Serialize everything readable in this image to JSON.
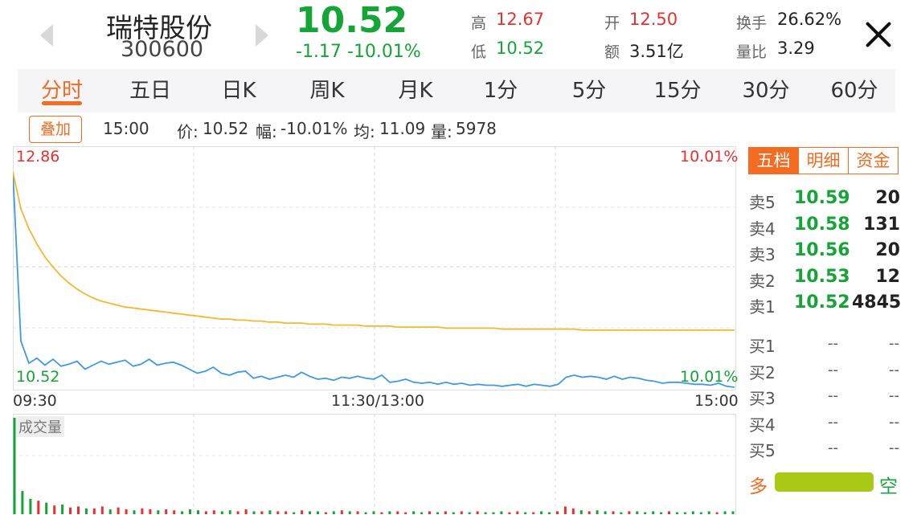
{
  "header": {
    "name": "瑞特股份",
    "code": "300600",
    "price": "10.52",
    "change": "-1.17",
    "change_pct": "-10.01%"
  },
  "stats": {
    "high_label": "高",
    "high": "12.67",
    "low_label": "低",
    "low": "10.52",
    "open_label": "开",
    "open": "12.50",
    "amount_label": "额",
    "amount": "3.51亿",
    "turnover_label": "换手",
    "turnover": "26.62%",
    "vol_ratio_label": "量比",
    "vol_ratio": "3.29"
  },
  "tabs": [
    "分时",
    "五日",
    "日K",
    "周K",
    "月K",
    "1分",
    "5分",
    "15分",
    "30分",
    "60分"
  ],
  "active_tab": "分时",
  "info": {
    "overlay": "叠加",
    "time": "15:00",
    "price_label": "价:",
    "price": "10.52",
    "range_label": "幅:",
    "range": "-10.01%",
    "avg_label": "均:",
    "avg": "11.09",
    "vol_label": "量:",
    "vol": "5978"
  },
  "chart": {
    "ymax": "12.86",
    "ymin": "10.52",
    "pct_top": "10.01%",
    "pct_bottom": "10.01%",
    "time_start": "09:30",
    "time_mid": "11:30/13:00",
    "time_end": "15:00",
    "volume_label": "成交量"
  },
  "chart_data": {
    "type": "line",
    "ylim": [
      10.52,
      12.86
    ],
    "series": [
      {
        "role": "price",
        "color": "#3e9ae6",
        "values": [
          12.67,
          10.98,
          10.76,
          10.81,
          10.74,
          10.8,
          10.73,
          10.75,
          10.78,
          10.7,
          10.74,
          10.78,
          10.75,
          10.77,
          10.79,
          10.73,
          10.75,
          10.8,
          10.74,
          10.76,
          10.77,
          10.74,
          10.7,
          10.66,
          10.68,
          10.72,
          10.66,
          10.64,
          10.67,
          10.68,
          10.61,
          10.63,
          10.6,
          10.62,
          10.64,
          10.62,
          10.67,
          10.63,
          10.6,
          10.61,
          10.59,
          10.62,
          10.61,
          10.63,
          10.61,
          10.6,
          10.64,
          10.57,
          10.58,
          10.6,
          10.57,
          10.56,
          10.57,
          10.55,
          10.57,
          10.55,
          10.56,
          10.54,
          10.55,
          10.54,
          10.54,
          10.53,
          10.54,
          10.55,
          10.53,
          10.55,
          10.54,
          10.53,
          10.55,
          10.62,
          10.64,
          10.62,
          10.63,
          10.62,
          10.6,
          10.63,
          10.6,
          10.62,
          10.61,
          10.59,
          10.58,
          10.56,
          10.57,
          10.57,
          10.56,
          10.55,
          10.55,
          10.54,
          10.56,
          10.53,
          10.52
        ]
      },
      {
        "role": "average",
        "color": "#f5b82b",
        "values": [
          12.67,
          12.3,
          12.1,
          11.95,
          11.82,
          11.72,
          11.63,
          11.56,
          11.5,
          11.45,
          11.41,
          11.38,
          11.36,
          11.34,
          11.32,
          11.31,
          11.3,
          11.29,
          11.28,
          11.27,
          11.26,
          11.25,
          11.24,
          11.23,
          11.22,
          11.21,
          11.2,
          11.2,
          11.19,
          11.19,
          11.18,
          11.18,
          11.17,
          11.17,
          11.16,
          11.16,
          11.16,
          11.15,
          11.15,
          11.15,
          11.14,
          11.14,
          11.14,
          11.14,
          11.13,
          11.13,
          11.13,
          11.13,
          11.12,
          11.12,
          11.12,
          11.12,
          11.12,
          11.12,
          11.11,
          11.11,
          11.11,
          11.11,
          11.11,
          11.11,
          11.11,
          11.1,
          11.1,
          11.1,
          11.1,
          11.1,
          11.1,
          11.1,
          11.1,
          11.1,
          11.1,
          11.09,
          11.09,
          11.09,
          11.09,
          11.09,
          11.09,
          11.09,
          11.09,
          11.09,
          11.09,
          11.09,
          11.09,
          11.09,
          11.09,
          11.09,
          11.09,
          11.09,
          11.09,
          11.09,
          11.09
        ]
      }
    ],
    "volume": [
      100,
      24,
      16,
      14,
      12,
      9,
      10,
      7,
      8,
      6,
      6,
      8,
      5,
      7,
      5,
      4,
      6,
      5,
      4,
      5,
      4,
      3,
      5,
      4,
      3,
      4,
      3,
      4,
      3,
      5,
      3,
      3,
      4,
      3,
      3,
      2,
      4,
      3,
      3,
      2,
      3,
      4,
      3,
      3,
      2,
      3,
      2,
      3,
      3,
      2,
      3,
      2,
      3,
      2,
      3,
      2,
      3,
      2,
      3,
      2,
      2,
      3,
      2,
      3,
      2,
      2,
      3,
      2,
      3,
      8,
      6,
      4,
      3,
      4,
      3,
      3,
      2,
      3,
      3,
      2,
      3,
      2,
      3,
      2,
      2,
      3,
      2,
      3,
      2,
      3,
      3
    ]
  },
  "orderbook": {
    "tabs": [
      "五档",
      "明细",
      "资金"
    ],
    "sells": [
      {
        "label": "卖5",
        "price": "10.59",
        "vol": "20"
      },
      {
        "label": "卖4",
        "price": "10.58",
        "vol": "131"
      },
      {
        "label": "卖3",
        "price": "10.56",
        "vol": "20"
      },
      {
        "label": "卖2",
        "price": "10.53",
        "vol": "12"
      },
      {
        "label": "卖1",
        "price": "10.52",
        "vol": "4845"
      }
    ],
    "buys": [
      {
        "label": "买1",
        "price": "--",
        "vol": "--"
      },
      {
        "label": "买2",
        "price": "--",
        "vol": "--"
      },
      {
        "label": "买3",
        "price": "--",
        "vol": "--"
      },
      {
        "label": "买4",
        "price": "--",
        "vol": "--"
      },
      {
        "label": "买5",
        "price": "--",
        "vol": "--"
      }
    ],
    "bull": "多",
    "bear": "空"
  },
  "colors": {
    "accent": "#f36c21",
    "up": "#e93030",
    "down": "#14a536"
  }
}
